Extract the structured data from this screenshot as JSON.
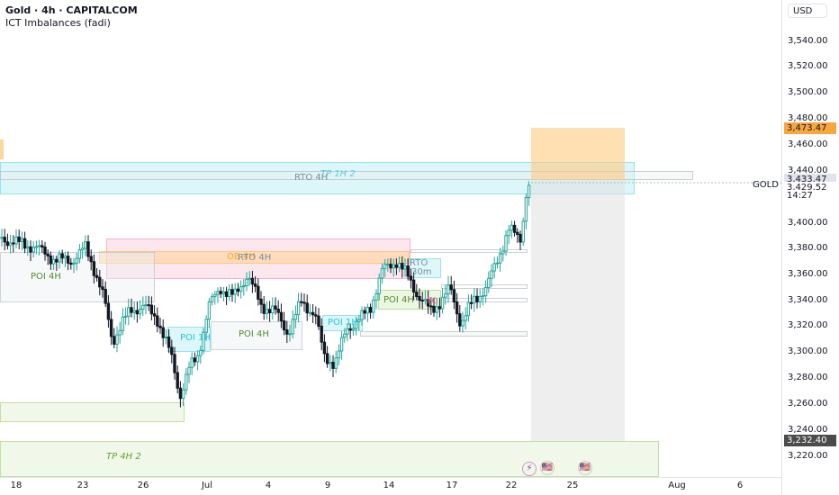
{
  "header": {
    "title": "Gold · 4h · CAPITALCOM",
    "indicator": "ICT Imbalances (fadi)"
  },
  "symbol_label": "GOLD",
  "price_axis": {
    "currency": "USD",
    "ticks": [
      "3,540.00",
      "3,520.00",
      "3,500.00",
      "3,480.00",
      "3,460.00",
      "3,440.00",
      "3,400.00",
      "3,380.00",
      "3,360.00",
      "3,340.00",
      "3,320.00",
      "3,300.00",
      "3,280.00",
      "3,260.00",
      "3,240.00",
      "3,220.00"
    ],
    "badges": {
      "target": "3,473.47",
      "target_color": "#f8a73f",
      "current_1": "3,433.47",
      "current_2": "3,429.52",
      "countdown": "14:27",
      "stop": "3,232.40",
      "stop_color": "#4b4b4b"
    }
  },
  "time_axis": [
    "18",
    "23",
    "26",
    "Jul",
    "4",
    "9",
    "14",
    "17",
    "22",
    "25",
    "Aug",
    "6"
  ],
  "zones": {
    "tp_1h_2": "TP 1H 2",
    "rto_4h": "RTO 4H",
    "poi_4h_left": "POI 4H",
    "ob_4h": "OB 4H",
    "rto_4h_mid": "RTO 4H",
    "poi_1h": "POI 1H",
    "poi_4h_mid": "POI 4H",
    "poi_1h_right": "POI 1H",
    "rto_30m_a": "RTO",
    "rto_30m_b": "30m",
    "poi_4h_right": "POI 4H",
    "tp_4h_2": "TP 4H 2",
    "small_tag": "PO"
  },
  "events": [
    {
      "icon": "lightning-icon",
      "glyph": "⚡"
    },
    {
      "icon": "us-flag-icon",
      "glyph": "🇺🇸"
    },
    {
      "icon": "us-flag-icon",
      "glyph": "🇺🇸"
    }
  ],
  "colors": {
    "bull": "#26a69a",
    "bear": "#131722",
    "target_box": "#ffcc80",
    "stop_box": "#e0e0e0",
    "zone_blue": "#b2ebf2",
    "zone_pink": "#f8bbd0",
    "zone_orange": "#ffcc80",
    "zone_green": "#dcedc8",
    "zone_grey": "#eceff1"
  }
}
